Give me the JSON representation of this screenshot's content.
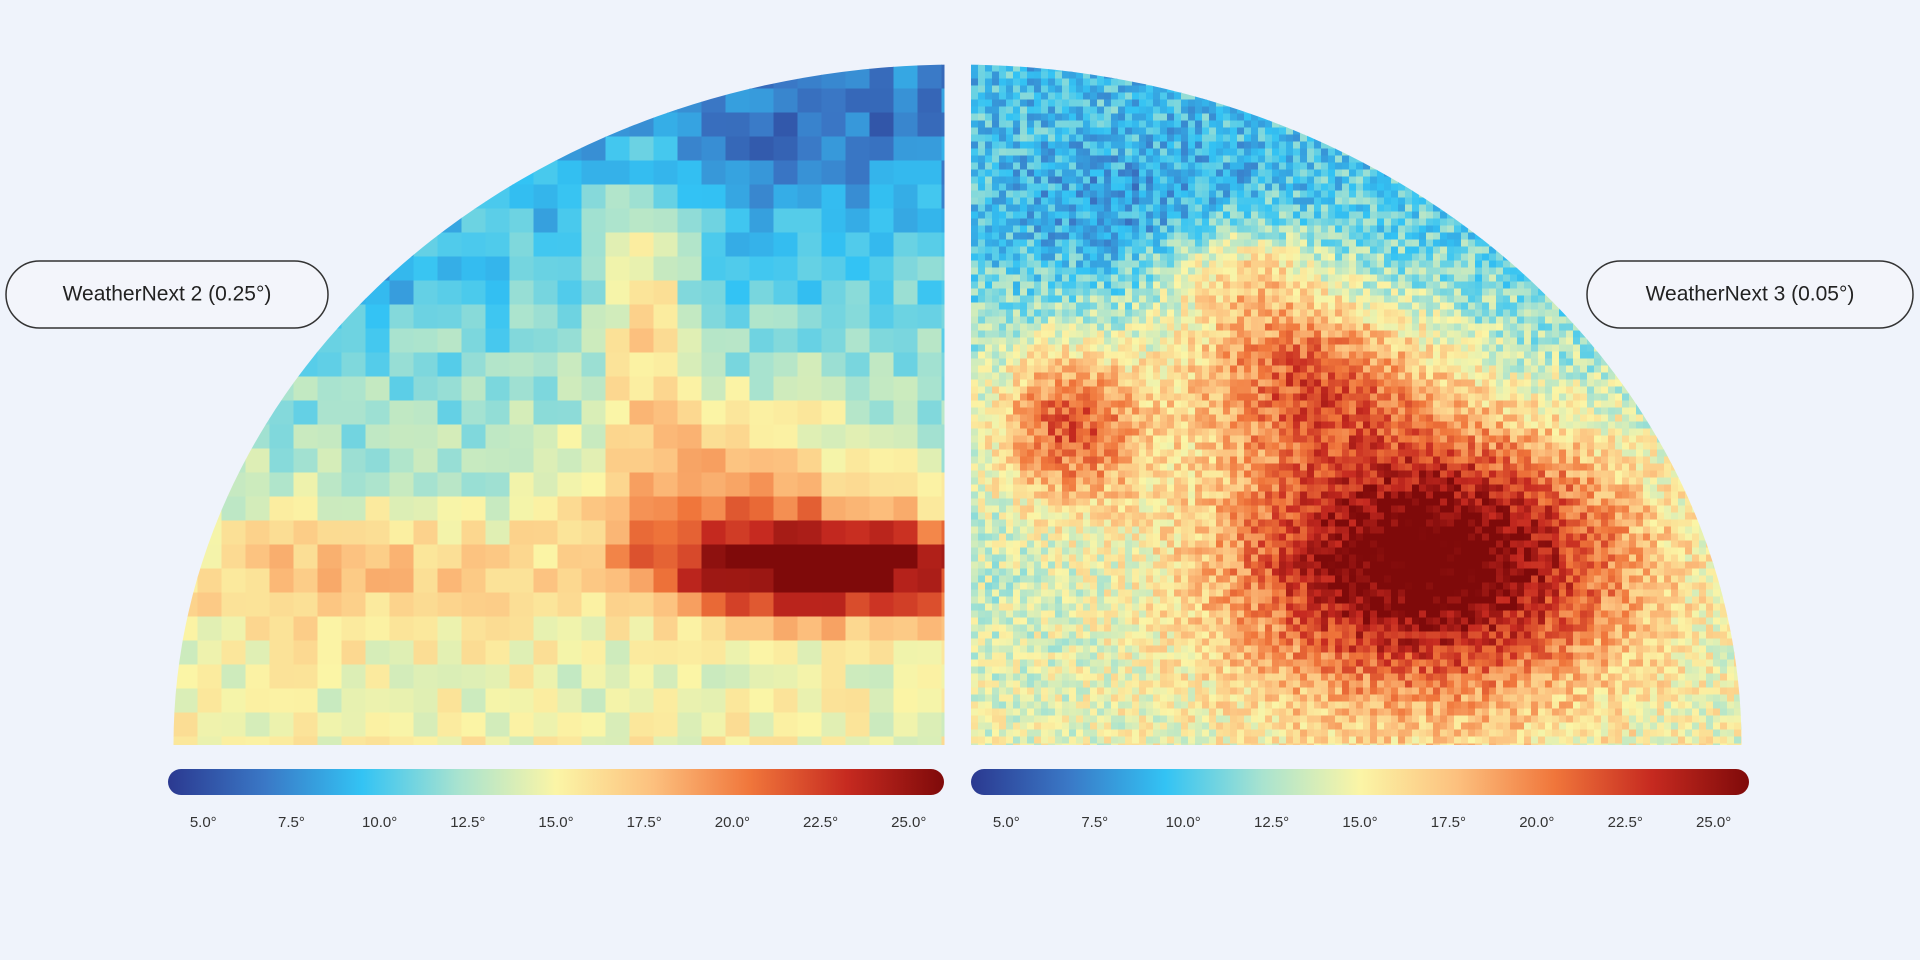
{
  "colormap": [
    "#2b3990",
    "#3a78c6",
    "#33c3f4",
    "#a9e3cf",
    "#fbf5a6",
    "#fcc07e",
    "#f0763b",
    "#c62a20",
    "#7f0a0a"
  ],
  "panels": [
    {
      "label": "WeatherNext 2 (0.25°)",
      "colorbar": {
        "range": [
          4,
          26
        ],
        "ticks": [
          {
            "value": 5,
            "label": "5.0°"
          },
          {
            "value": 7.5,
            "label": "7.5°"
          },
          {
            "value": 10,
            "label": "10.0°"
          },
          {
            "value": 12.5,
            "label": "12.5°"
          },
          {
            "value": 15,
            "label": "15.0°"
          },
          {
            "value": 17.5,
            "label": "17.5°"
          },
          {
            "value": 20,
            "label": "20.0°"
          },
          {
            "value": 22.5,
            "label": "22.5°"
          },
          {
            "value": 25,
            "label": "25.0°"
          }
        ]
      }
    },
    {
      "label": "WeatherNext 3 (0.05°)",
      "colorbar": {
        "range": [
          4,
          26
        ],
        "ticks": [
          {
            "value": 5,
            "label": "5.0°"
          },
          {
            "value": 7.5,
            "label": "7.5°"
          },
          {
            "value": 10,
            "label": "10.0°"
          },
          {
            "value": 12.5,
            "label": "12.5°"
          },
          {
            "value": 15,
            "label": "15.0°"
          },
          {
            "value": 17.5,
            "label": "17.5°"
          },
          {
            "value": 20,
            "label": "20.0°"
          },
          {
            "value": 22.5,
            "label": "22.5°"
          },
          {
            "value": 25,
            "label": "25.0°"
          }
        ]
      }
    }
  ]
}
